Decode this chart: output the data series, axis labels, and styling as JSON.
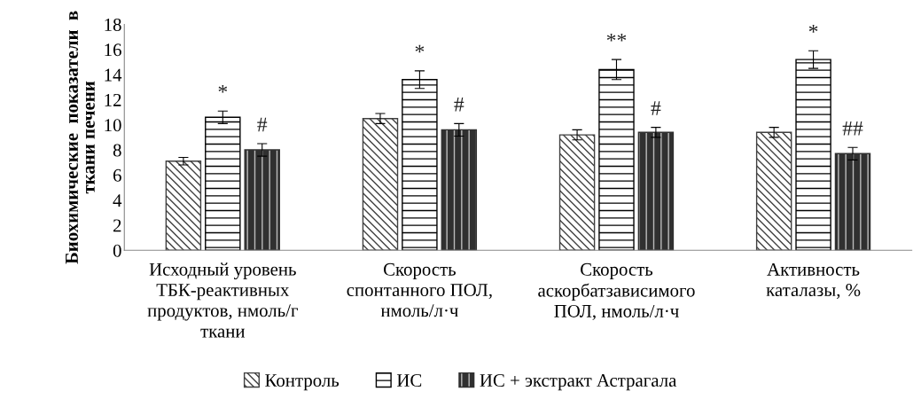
{
  "chart_data": {
    "type": "bar",
    "ylabel": "Биохимические  показатели  в\nткани печени",
    "categories": [
      "Исходный уровень\nТБК-реактивных\nпродуктов, нмоль/г\nткани",
      "Скорость\nспонтанного ПОЛ,\nнмоль/л·ч",
      "Скорость\nаскорбатзависимого\nПОЛ, нмоль/л·ч",
      "Активность\nкаталазы, %"
    ],
    "series": [
      {
        "name": "Контроль",
        "color": "#404040",
        "values": [
          7.1,
          10.5,
          9.2,
          9.4
        ],
        "errors": [
          0.3,
          0.4,
          0.4,
          0.4
        ]
      },
      {
        "name": "ИС",
        "color": "#000000",
        "values": [
          10.6,
          13.6,
          14.4,
          15.2
        ],
        "errors": [
          0.5,
          0.7,
          0.8,
          0.7
        ]
      },
      {
        "name": "ИС + экстракт Астрагала",
        "color": "#303030",
        "values": [
          8.0,
          9.6,
          9.4,
          7.7
        ],
        "errors": [
          0.5,
          0.5,
          0.4,
          0.5
        ]
      }
    ],
    "annotations": [
      "*",
      "#",
      "*",
      "#",
      "**",
      "#",
      "*",
      "##"
    ],
    "ylim": [
      0,
      18
    ],
    "yticks": [
      0,
      2,
      4,
      6,
      8,
      10,
      12,
      14,
      16,
      18
    ],
    "grid": false,
    "legend": "bottom"
  }
}
